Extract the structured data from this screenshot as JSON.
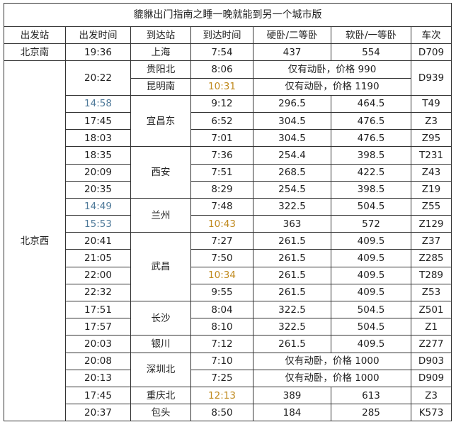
{
  "title": "貔貅出门指南之睡一晚就能到另一个城市版",
  "headers": [
    "出发站",
    "出发时间",
    "到达站",
    "到达时间",
    "硬卧/二等卧",
    "软卧/一等卧",
    "车次"
  ],
  "rows": [
    {
      "from": "北京南",
      "dep": "19:36",
      "to": "上海",
      "arr": "7:54",
      "hard": "437",
      "soft": "554",
      "train": "D709"
    },
    {
      "from": "北京西",
      "dep": "20:22",
      "to": "贵阳北",
      "arr": "8:06",
      "note": "仅有动卧，价格 990",
      "train": "D939"
    },
    {
      "to": "昆明南",
      "arr": "10:31",
      "note": "仅有动卧，价格 1190"
    },
    {
      "dep": "14:58",
      "to": "宜昌东",
      "arr": "9:12",
      "hard": "296.5",
      "soft": "464.5",
      "train": "T49"
    },
    {
      "dep": "17:45",
      "arr": "6:52",
      "hard": "304.5",
      "soft": "476.5",
      "train": "Z3"
    },
    {
      "dep": "18:03",
      "arr": "7:01",
      "hard": "304.5",
      "soft": "476.5",
      "train": "Z95"
    },
    {
      "dep": "18:35",
      "to": "西安",
      "arr": "7:36",
      "hard": "254.4",
      "soft": "398.5",
      "train": "T231"
    },
    {
      "dep": "20:09",
      "arr": "7:51",
      "hard": "268.5",
      "soft": "422.5",
      "train": "Z43"
    },
    {
      "dep": "20:35",
      "arr": "8:29",
      "hard": "254.5",
      "soft": "398.5",
      "train": "Z19"
    },
    {
      "dep": "14:49",
      "to": "兰州",
      "arr": "7:48",
      "hard": "322.5",
      "soft": "504.5",
      "train": "Z55"
    },
    {
      "dep": "15:53",
      "arr": "10:43",
      "hard": "363",
      "soft": "572",
      "train": "Z129"
    },
    {
      "dep": "20:41",
      "to": "武昌",
      "arr": "7:27",
      "hard": "261.5",
      "soft": "409.5",
      "train": "Z37"
    },
    {
      "dep": "21:05",
      "arr": "7:50",
      "hard": "261.5",
      "soft": "409.5",
      "train": "Z285"
    },
    {
      "dep": "22:00",
      "arr": "10:34",
      "hard": "261.5",
      "soft": "409.5",
      "train": "T289"
    },
    {
      "dep": "22:32",
      "arr": "9:55",
      "hard": "261.5",
      "soft": "409.5",
      "train": "Z53"
    },
    {
      "dep": "17:51",
      "to": "长沙",
      "arr": "8:04",
      "hard": "322.5",
      "soft": "504.5",
      "train": "Z501"
    },
    {
      "dep": "17:57",
      "arr": "8:10",
      "hard": "322.5",
      "soft": "504.5",
      "train": "Z1"
    },
    {
      "dep": "20:03",
      "to": "银川",
      "arr": "7:12",
      "hard": "261.5",
      "soft": "409.5",
      "train": "Z277"
    },
    {
      "dep": "20:08",
      "to": "深圳北",
      "arr": "7:10",
      "note": "仅有动卧，价格 1000",
      "train": "D903"
    },
    {
      "dep": "20:13",
      "arr": "7:25",
      "note": "仅有动卧，价格 1000",
      "train": "D909"
    },
    {
      "dep": "17:45",
      "to": "重庆北",
      "arr": "12:13",
      "hard": "389",
      "soft": "613",
      "train": "Z3"
    },
    {
      "dep": "20:37",
      "to": "包头",
      "arr": "8:50",
      "hard": "184",
      "soft": "285",
      "train": "K573"
    }
  ],
  "highlight_colors": {
    "blue": "#4f7a9a",
    "orange": "#c08a1f"
  }
}
